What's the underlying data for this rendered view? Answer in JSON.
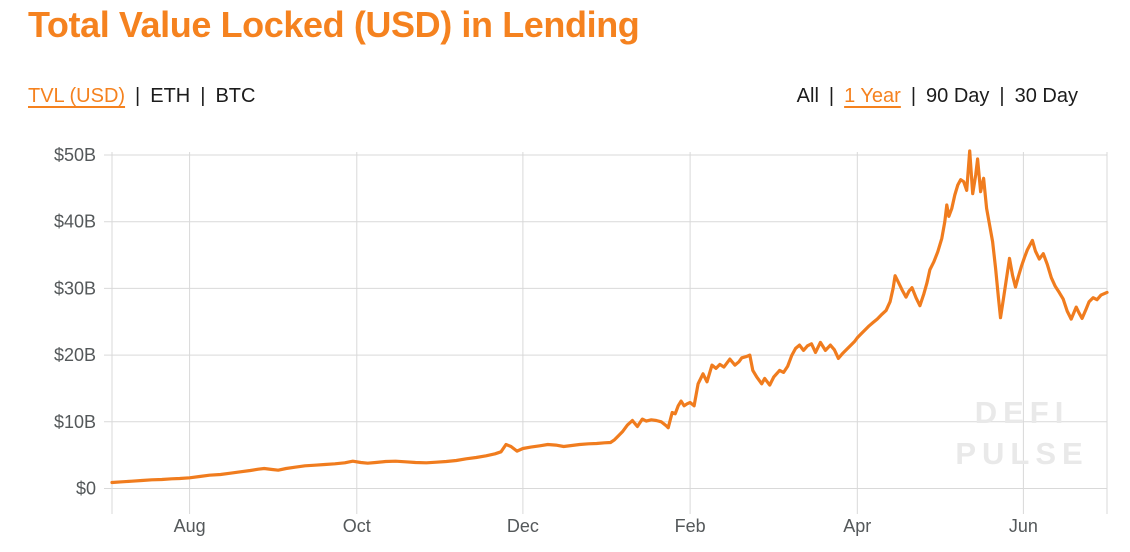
{
  "page": {
    "title": "Total Value Locked (USD) in Lending",
    "separator": "|"
  },
  "metric_tabs": [
    {
      "label": "TVL (USD)",
      "active": true
    },
    {
      "label": "ETH",
      "active": false
    },
    {
      "label": "BTC",
      "active": false
    }
  ],
  "range_tabs": [
    {
      "label": "All",
      "active": false
    },
    {
      "label": "1 Year",
      "active": true
    },
    {
      "label": "90 Day",
      "active": false
    },
    {
      "label": "30 Day",
      "active": false
    }
  ],
  "watermark": {
    "line1": "DEFI",
    "line2": "PULSE"
  },
  "colors": {
    "accent": "#f5821f",
    "line": "#f07c1e",
    "grid": "#d9d9d9",
    "axis_text": "#54585a",
    "text": "#1c1c1c",
    "watermark": "#e9e9e9"
  },
  "chart_data": {
    "type": "line",
    "title": "Total Value Locked (USD) in Lending",
    "unit": "USD billions",
    "range_shown": "1 Year",
    "grid": true,
    "legend": "none",
    "y_axis": {
      "min": 0,
      "max": 50,
      "ticks": [
        {
          "label": "$0",
          "value": 0
        },
        {
          "label": "$10B",
          "value": 10
        },
        {
          "label": "$20B",
          "value": 20
        },
        {
          "label": "$30B",
          "value": 30
        },
        {
          "label": "$40B",
          "value": 40
        },
        {
          "label": "$50B",
          "value": 50
        }
      ]
    },
    "x_axis": {
      "note": "pos is fraction of plot width; span is ~Jul 2020 to ~Jul 2021",
      "ticks": [
        {
          "label": "Aug",
          "pos": 0.078
        },
        {
          "label": "Oct",
          "pos": 0.246
        },
        {
          "label": "Dec",
          "pos": 0.413
        },
        {
          "label": "Feb",
          "pos": 0.581
        },
        {
          "label": "Apr",
          "pos": 0.749
        },
        {
          "label": "Jun",
          "pos": 0.916
        }
      ]
    },
    "series": [
      {
        "name": "TVL (USD)",
        "color": "#f07c1e",
        "points": [
          [
            0.0,
            0.9
          ],
          [
            0.01,
            1.0
          ],
          [
            0.02,
            1.1
          ],
          [
            0.03,
            1.2
          ],
          [
            0.04,
            1.3
          ],
          [
            0.05,
            1.35
          ],
          [
            0.06,
            1.45
          ],
          [
            0.068,
            1.5
          ],
          [
            0.078,
            1.6
          ],
          [
            0.088,
            1.8
          ],
          [
            0.098,
            2.0
          ],
          [
            0.109,
            2.1
          ],
          [
            0.119,
            2.3
          ],
          [
            0.129,
            2.5
          ],
          [
            0.139,
            2.7
          ],
          [
            0.147,
            2.9
          ],
          [
            0.153,
            3.0
          ],
          [
            0.161,
            2.85
          ],
          [
            0.167,
            2.75
          ],
          [
            0.175,
            3.0
          ],
          [
            0.184,
            3.2
          ],
          [
            0.194,
            3.4
          ],
          [
            0.204,
            3.5
          ],
          [
            0.214,
            3.6
          ],
          [
            0.224,
            3.7
          ],
          [
            0.234,
            3.85
          ],
          [
            0.242,
            4.1
          ],
          [
            0.25,
            3.9
          ],
          [
            0.257,
            3.8
          ],
          [
            0.265,
            3.9
          ],
          [
            0.275,
            4.05
          ],
          [
            0.285,
            4.1
          ],
          [
            0.295,
            4.0
          ],
          [
            0.305,
            3.9
          ],
          [
            0.316,
            3.85
          ],
          [
            0.326,
            3.95
          ],
          [
            0.336,
            4.05
          ],
          [
            0.346,
            4.2
          ],
          [
            0.356,
            4.45
          ],
          [
            0.366,
            4.65
          ],
          [
            0.376,
            4.9
          ],
          [
            0.385,
            5.2
          ],
          [
            0.391,
            5.5
          ],
          [
            0.396,
            6.6
          ],
          [
            0.401,
            6.3
          ],
          [
            0.407,
            5.6
          ],
          [
            0.413,
            6.0
          ],
          [
            0.421,
            6.2
          ],
          [
            0.43,
            6.4
          ],
          [
            0.438,
            6.6
          ],
          [
            0.446,
            6.5
          ],
          [
            0.454,
            6.3
          ],
          [
            0.462,
            6.45
          ],
          [
            0.47,
            6.6
          ],
          [
            0.479,
            6.7
          ],
          [
            0.487,
            6.75
          ],
          [
            0.495,
            6.85
          ],
          [
            0.501,
            6.9
          ],
          [
            0.505,
            7.3
          ],
          [
            0.509,
            7.9
          ],
          [
            0.513,
            8.5
          ],
          [
            0.518,
            9.5
          ],
          [
            0.523,
            10.2
          ],
          [
            0.528,
            9.3
          ],
          [
            0.533,
            10.4
          ],
          [
            0.537,
            10.1
          ],
          [
            0.542,
            10.3
          ],
          [
            0.547,
            10.2
          ],
          [
            0.552,
            10.0
          ],
          [
            0.557,
            9.4
          ],
          [
            0.559,
            9.1
          ],
          [
            0.563,
            11.4
          ],
          [
            0.566,
            11.2
          ],
          [
            0.569,
            12.4
          ],
          [
            0.572,
            13.1
          ],
          [
            0.575,
            12.4
          ],
          [
            0.578,
            12.7
          ],
          [
            0.581,
            12.9
          ],
          [
            0.585,
            12.4
          ],
          [
            0.589,
            15.7
          ],
          [
            0.594,
            17.2
          ],
          [
            0.598,
            16.0
          ],
          [
            0.603,
            18.5
          ],
          [
            0.607,
            18.0
          ],
          [
            0.611,
            18.6
          ],
          [
            0.615,
            18.2
          ],
          [
            0.618,
            18.8
          ],
          [
            0.621,
            19.4
          ],
          [
            0.626,
            18.5
          ],
          [
            0.63,
            19.0
          ],
          [
            0.633,
            19.6
          ],
          [
            0.638,
            19.8
          ],
          [
            0.641,
            20.0
          ],
          [
            0.644,
            17.7
          ],
          [
            0.648,
            16.7
          ],
          [
            0.653,
            15.7
          ],
          [
            0.656,
            16.5
          ],
          [
            0.661,
            15.5
          ],
          [
            0.665,
            16.7
          ],
          [
            0.671,
            17.7
          ],
          [
            0.675,
            17.4
          ],
          [
            0.679,
            18.3
          ],
          [
            0.683,
            19.9
          ],
          [
            0.687,
            21.0
          ],
          [
            0.691,
            21.5
          ],
          [
            0.695,
            20.7
          ],
          [
            0.699,
            21.4
          ],
          [
            0.703,
            21.7
          ],
          [
            0.707,
            20.4
          ],
          [
            0.712,
            21.9
          ],
          [
            0.717,
            20.7
          ],
          [
            0.722,
            21.5
          ],
          [
            0.726,
            20.8
          ],
          [
            0.73,
            19.5
          ],
          [
            0.734,
            20.2
          ],
          [
            0.738,
            20.8
          ],
          [
            0.742,
            21.4
          ],
          [
            0.746,
            22.0
          ],
          [
            0.749,
            22.6
          ],
          [
            0.753,
            23.2
          ],
          [
            0.757,
            23.8
          ],
          [
            0.761,
            24.4
          ],
          [
            0.765,
            24.9
          ],
          [
            0.769,
            25.4
          ],
          [
            0.773,
            26.0
          ],
          [
            0.778,
            26.7
          ],
          [
            0.782,
            28.0
          ],
          [
            0.785,
            30.0
          ],
          [
            0.787,
            31.9
          ],
          [
            0.79,
            31.0
          ],
          [
            0.794,
            29.8
          ],
          [
            0.798,
            28.7
          ],
          [
            0.801,
            29.6
          ],
          [
            0.804,
            30.1
          ],
          [
            0.808,
            28.6
          ],
          [
            0.812,
            27.4
          ],
          [
            0.816,
            29.2
          ],
          [
            0.819,
            30.8
          ],
          [
            0.822,
            32.8
          ],
          [
            0.826,
            34.0
          ],
          [
            0.83,
            35.5
          ],
          [
            0.834,
            37.5
          ],
          [
            0.837,
            40.0
          ],
          [
            0.839,
            42.5
          ],
          [
            0.841,
            40.8
          ],
          [
            0.844,
            42.0
          ],
          [
            0.847,
            44.0
          ],
          [
            0.85,
            45.5
          ],
          [
            0.853,
            46.3
          ],
          [
            0.856,
            46.0
          ],
          [
            0.859,
            44.7
          ],
          [
            0.862,
            50.6
          ],
          [
            0.865,
            44.2
          ],
          [
            0.868,
            47.0
          ],
          [
            0.87,
            49.4
          ],
          [
            0.873,
            44.5
          ],
          [
            0.876,
            46.5
          ],
          [
            0.879,
            42.0
          ],
          [
            0.882,
            39.5
          ],
          [
            0.885,
            37.0
          ],
          [
            0.888,
            33.0
          ],
          [
            0.891,
            28.5
          ],
          [
            0.893,
            25.6
          ],
          [
            0.896,
            28.5
          ],
          [
            0.899,
            31.5
          ],
          [
            0.902,
            34.5
          ],
          [
            0.905,
            32.0
          ],
          [
            0.908,
            30.2
          ],
          [
            0.911,
            31.8
          ],
          [
            0.914,
            33.3
          ],
          [
            0.917,
            34.6
          ],
          [
            0.92,
            35.8
          ],
          [
            0.925,
            37.2
          ],
          [
            0.928,
            35.6
          ],
          [
            0.932,
            34.4
          ],
          [
            0.936,
            35.2
          ],
          [
            0.94,
            33.6
          ],
          [
            0.944,
            31.6
          ],
          [
            0.948,
            30.3
          ],
          [
            0.952,
            29.4
          ],
          [
            0.956,
            28.4
          ],
          [
            0.96,
            26.6
          ],
          [
            0.964,
            25.4
          ],
          [
            0.969,
            27.2
          ],
          [
            0.972,
            26.3
          ],
          [
            0.975,
            25.5
          ],
          [
            0.979,
            26.9
          ],
          [
            0.982,
            28.0
          ],
          [
            0.986,
            28.6
          ],
          [
            0.99,
            28.3
          ],
          [
            0.994,
            29.0
          ],
          [
            1.0,
            29.4
          ]
        ]
      }
    ]
  }
}
